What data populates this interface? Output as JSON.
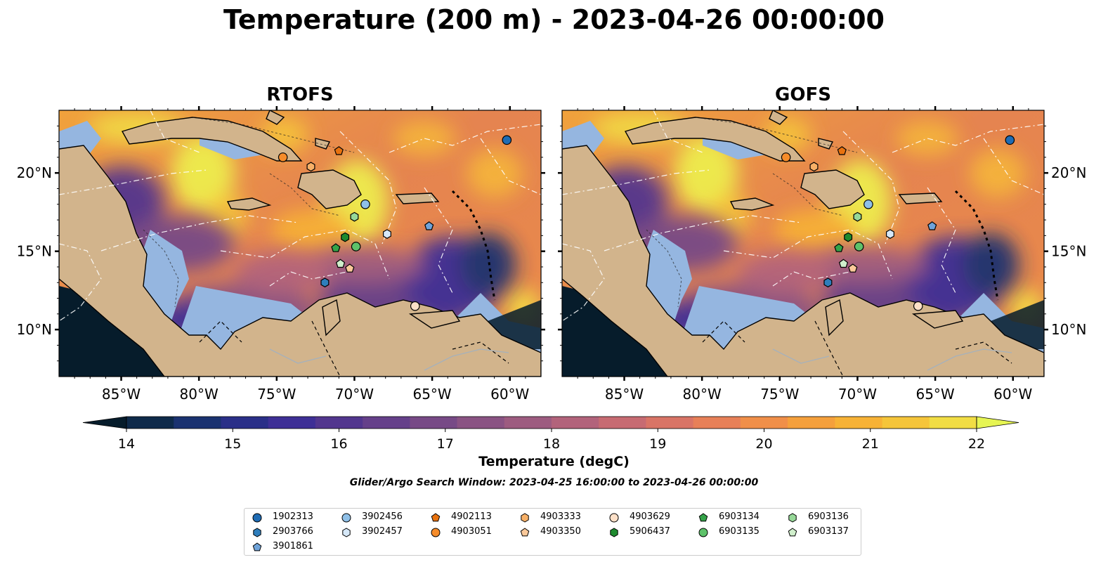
{
  "title": "Temperature (200 m) - 2023-04-26 00:00:00",
  "panels": [
    {
      "id": "rtofs",
      "title": "RTOFS"
    },
    {
      "id": "gofs",
      "title": "GOFS"
    }
  ],
  "map": {
    "lon_ticks": [
      "85°W",
      "80°W",
      "75°W",
      "70°W",
      "65°W",
      "60°W"
    ],
    "lat_ticks": [
      "20°N",
      "15°N",
      "10°N"
    ],
    "land_color": "#d2b48c",
    "shelf_color": "#95b6e0",
    "deep_color": "#061c2b"
  },
  "colorbar": {
    "label": "Temperature (degC)",
    "ticks": [
      "14",
      "15",
      "16",
      "17",
      "18",
      "19",
      "20",
      "21",
      "22"
    ],
    "colors": [
      "#0e2a4a",
      "#1a3270",
      "#2a2f88",
      "#3e2f96",
      "#52368e",
      "#65408a",
      "#774a86",
      "#8a5383",
      "#9d5c80",
      "#b2637b",
      "#c76b72",
      "#d97466",
      "#e78058",
      "#f08f49",
      "#f5a03c",
      "#f7b236",
      "#f5c53a",
      "#f1dd44"
    ],
    "under_color": "#061c2b",
    "over_color": "#e6f553"
  },
  "search_window": "Glider/Argo Search Window: 2023-04-25 16:00:00 to 2023-04-26 00:00:00",
  "legend": [
    {
      "id": "1902313",
      "marker": "circle",
      "color": "#1f6cb4"
    },
    {
      "id": "2903766",
      "marker": "hexagon",
      "color": "#2e7ebc"
    },
    {
      "id": "3901861",
      "marker": "pentagon",
      "color": "#6fa3d9"
    },
    {
      "id": "3902456",
      "marker": "circle",
      "color": "#8fc0e8"
    },
    {
      "id": "3902457",
      "marker": "hexagon",
      "color": "#d6e8f8"
    },
    {
      "id": "4902113",
      "marker": "pentagon",
      "color": "#e8720f"
    },
    {
      "id": "4903051",
      "marker": "circle",
      "color": "#f68c2a"
    },
    {
      "id": "4903333",
      "marker": "hexagon",
      "color": "#f7b067"
    },
    {
      "id": "4903350",
      "marker": "pentagon",
      "color": "#fbc99a"
    },
    {
      "id": "4903629",
      "marker": "circle",
      "color": "#fde0c8"
    },
    {
      "id": "5906437",
      "marker": "hexagon",
      "color": "#1e8a2e"
    },
    {
      "id": "6903134",
      "marker": "pentagon",
      "color": "#35a349"
    },
    {
      "id": "6903135",
      "marker": "circle",
      "color": "#5ec26a"
    },
    {
      "id": "6903136",
      "marker": "hexagon",
      "color": "#96d898"
    },
    {
      "id": "6903137",
      "marker": "pentagon",
      "color": "#d0efcc"
    }
  ],
  "float_positions": [
    {
      "id": "1902313",
      "lon": -60.2,
      "lat": 22.1
    },
    {
      "id": "2903766",
      "lon": -71.9,
      "lat": 13.0
    },
    {
      "id": "3901861",
      "lon": -65.2,
      "lat": 16.6
    },
    {
      "id": "3902456",
      "lon": -69.3,
      "lat": 18.0
    },
    {
      "id": "3902457",
      "lon": -67.9,
      "lat": 16.1
    },
    {
      "id": "4902113",
      "lon": -71.0,
      "lat": 21.4
    },
    {
      "id": "4903051",
      "lon": -74.6,
      "lat": 21.0
    },
    {
      "id": "4903333",
      "lon": -72.8,
      "lat": 20.4
    },
    {
      "id": "4903350",
      "lon": -70.3,
      "lat": 13.9
    },
    {
      "id": "4903629",
      "lon": -66.1,
      "lat": 11.5
    },
    {
      "id": "5906437",
      "lon": -70.6,
      "lat": 15.9
    },
    {
      "id": "6903134",
      "lon": -71.2,
      "lat": 15.2
    },
    {
      "id": "6903135",
      "lon": -69.9,
      "lat": 15.3
    },
    {
      "id": "6903136",
      "lon": -70.0,
      "lat": 17.2
    },
    {
      "id": "6903137",
      "lon": -70.9,
      "lat": 14.2
    }
  ]
}
